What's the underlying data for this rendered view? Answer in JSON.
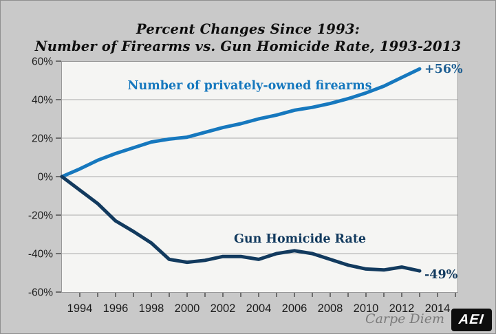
{
  "title": {
    "line1": "Percent Changes Since 1993:",
    "line2": "Number of Firearms vs. Gun Homicide Rate, 1993-2013"
  },
  "footer": {
    "credit": "Carpe Diem",
    "logo_text": "AEI"
  },
  "colors": {
    "canvas_bg": "#c9c9c9",
    "plot_bg": "#f5f5f3",
    "plot_border": "#999999",
    "grid": "#a9a9a9",
    "tick": "#3a3a3a",
    "axis_text": "#1c1c1c",
    "firearms_blue": "#1678be",
    "homicide_navy": "#123a5e",
    "firearms_end_label": "#1d5e92",
    "homicide_end_label": "#123a5e",
    "credit_gray": "#7b7b7b",
    "logo_bg": "#0d0d0d",
    "logo_text": "#ffffff"
  },
  "chart_data": {
    "type": "line",
    "title": "Percent Changes Since 1993: Number of Firearms vs. Gun Homicide Rate, 1993-2013",
    "xlabel": "",
    "ylabel": "",
    "grid": true,
    "legend_position": "inline-labels",
    "x": [
      1993,
      1994,
      1995,
      1996,
      1997,
      1998,
      1999,
      2000,
      2001,
      2002,
      2003,
      2004,
      2005,
      2006,
      2007,
      2008,
      2009,
      2010,
      2011,
      2012,
      2013
    ],
    "series": [
      {
        "name": "Number of privately-owned firearms",
        "color": "#1678be",
        "end_label": "+56%",
        "end_label_color": "#1d5e92",
        "values": [
          0,
          4,
          8.5,
          12,
          15,
          18,
          19.5,
          20.5,
          23,
          25.5,
          27.5,
          30,
          32,
          34.5,
          36,
          38,
          40.5,
          43.5,
          47,
          51.5,
          56
        ]
      },
      {
        "name": "Gun Homicide Rate",
        "color": "#123a5e",
        "end_label": "-49%",
        "end_label_color": "#123a5e",
        "values": [
          0,
          -7,
          -14,
          -23,
          -28.5,
          -34.5,
          -43,
          -44.5,
          -43.5,
          -41.5,
          -41.5,
          -43,
          -40,
          -38.5,
          -40,
          -43,
          -46,
          -48,
          -48.5,
          -47,
          -49
        ]
      }
    ],
    "ylim": [
      -60,
      60
    ],
    "xlim": [
      1993,
      2015.3
    ],
    "y_tick_values": [
      60,
      40,
      20,
      0,
      -20,
      -40,
      -60
    ],
    "y_tick_labels": [
      "60%",
      "40%",
      "20%",
      "0%",
      "-20%",
      "-40%",
      "-60%"
    ],
    "x_tick_labels": [
      "1994",
      "1996",
      "1998",
      "2000",
      "2002",
      "2004",
      "2006",
      "2008",
      "2010",
      "2012",
      "2014"
    ],
    "x_minor_tick_years": [
      1994,
      1995,
      1996,
      1997,
      1998,
      1999,
      2000,
      2001,
      2002,
      2003,
      2004,
      2005,
      2006,
      2007,
      2008,
      2009,
      2010,
      2011,
      2012,
      2013,
      2014,
      2015
    ]
  }
}
